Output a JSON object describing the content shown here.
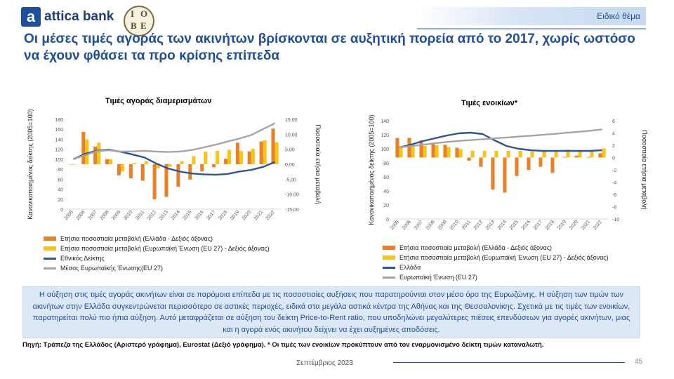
{
  "header": {
    "logo_text": "attica bank",
    "logo_mark": "a",
    "partner_logo_letters": [
      "I",
      "O",
      "B",
      "E"
    ],
    "badge": "Ειδικό θέμα"
  },
  "title": "Οι μέσες τιμές αγοράς των ακινήτων βρίσκονται σε αυξητική πορεία από το 2017, χωρίς ωστόσο να έχουν φθάσει τα προ κρίσης επίπεδα",
  "colors": {
    "orange": "#e8812a",
    "yellow": "#f5c518",
    "blue": "#2f5597",
    "gray": "#a5a5a5",
    "accent": "#1f4e9c"
  },
  "chart_data": [
    {
      "type": "bar",
      "title": "Τιμές αγοράς διαμερισμάτων",
      "ylabel": "Κανονικοποιημένος δείκτης (2005=100)",
      "y2label": "Ποσοστιαία ετήσια μεταβολή",
      "ylim": [
        0,
        180
      ],
      "y2lim": [
        -15,
        15
      ],
      "yticks": [
        "0",
        "20",
        "40",
        "60",
        "80",
        "100",
        "120",
        "140",
        "160",
        "180"
      ],
      "y2ticks": [
        "-15,00",
        "-10,00",
        "-5,00",
        "0,00",
        "5,00",
        "10,00",
        "15,00"
      ],
      "categories": [
        "2005",
        "2006",
        "2007",
        "2008",
        "2009",
        "2010",
        "2011",
        "2012",
        "2013",
        "2014",
        "2015",
        "2016",
        "2017",
        "2018",
        "2019",
        "2020",
        "2021",
        "2022"
      ],
      "series": [
        {
          "name": "Ετήσια ποσοστιαία μεταβολή (Ελλάδα - Δεξιός άξονας)",
          "kind": "bar",
          "axis": "right",
          "values": [
            0,
            10.8,
            5.9,
            1.7,
            -3.7,
            -4.7,
            -5.5,
            -11.7,
            -10.9,
            -7.5,
            -5.1,
            -2.4,
            -1.0,
            1.8,
            7.2,
            4.3,
            7.6,
            11.9
          ]
        },
        {
          "name": "Ετήσια ποσοστιαία μεταβολή (Ευρωπαϊκή Ένωση (EU 27) - Δεξιός άξονας)",
          "kind": "bar",
          "axis": "right",
          "values": [
            0,
            8.3,
            7.2,
            1.7,
            -2.4,
            0.4,
            1.0,
            -1.4,
            -0.8,
            1.0,
            2.7,
            4.2,
            4.5,
            4.8,
            4.4,
            5.1,
            8.0,
            7.3
          ]
        },
        {
          "name": "Εθνικός Δείκτης",
          "kind": "line",
          "axis": "left",
          "values": [
            100,
            110.8,
            117.3,
            119.3,
            114.9,
            109.5,
            103.5,
            91.4,
            81.4,
            75.3,
            71.5,
            69.8,
            69.1,
            70.4,
            75.4,
            78.6,
            84.6,
            94.7
          ]
        },
        {
          "name": "Μέσος Ευρωπαϊκής Ένωσης(EU 27)",
          "kind": "line",
          "axis": "left",
          "values": [
            100,
            108.3,
            116.1,
            118.1,
            115.3,
            115.8,
            116.9,
            115.3,
            114.4,
            115.5,
            118.6,
            123.6,
            129.2,
            135.4,
            141.3,
            148.5,
            160.4,
            172.1
          ]
        }
      ]
    },
    {
      "type": "bar",
      "title": "Τιμές ενοικίων*",
      "ylabel": "Κανονικοποιημένος δείκτης (2005=100)",
      "y2label": "Ποσοστιαία ετήσια μεταβολή",
      "ylim": [
        0,
        140
      ],
      "y2lim": [
        -10,
        6
      ],
      "yticks": [
        "0",
        "20",
        "40",
        "60",
        "80",
        "100",
        "120",
        "140"
      ],
      "y2ticks": [
        "-10",
        "-8",
        "-6",
        "-4",
        "-2",
        "0",
        "2",
        "4",
        "6"
      ],
      "categories": [
        "2005",
        "2006",
        "2007",
        "2008",
        "2009",
        "2010",
        "2011",
        "2012",
        "2013",
        "2014",
        "2015",
        "2016",
        "2017",
        "2018",
        "2019",
        "2020",
        "2021",
        "2022"
      ],
      "series": [
        {
          "name": "Ετήσια ποσοστιαία μεταβολή (Ελλάδα - Δεξιός άξονας)",
          "kind": "bar",
          "axis": "right",
          "values": [
            3.2,
            3.2,
            2.8,
            2.4,
            2.1,
            1.6,
            -0.5,
            -1.5,
            -5.2,
            -5.7,
            -3.0,
            -2.0,
            -1.5,
            -2.5,
            0.1,
            0.3,
            0.1,
            0.7
          ]
        },
        {
          "name": "Ετήσια ποσοστιαία μεταβολή (Ευρωπαϊκή Ένωση (EU 27) - Δεξιός άξονας)",
          "kind": "bar",
          "axis": "right",
          "values": [
            1.8,
            1.9,
            1.9,
            2.0,
            1.7,
            1.4,
            1.1,
            1.1,
            1.1,
            1.1,
            1.1,
            1.0,
            1.1,
            1.1,
            1.3,
            1.1,
            1.2,
            1.5
          ]
        },
        {
          "name": "Ελλάδα",
          "kind": "line",
          "axis": "left",
          "values": [
            102,
            106,
            111,
            115,
            119,
            122,
            123,
            121,
            112,
            104,
            100,
            98,
            97,
            97,
            97,
            97,
            97,
            98
          ]
        },
        {
          "name": "Ευρωπαϊκή Ένωση (EU 27)",
          "kind": "line",
          "axis": "left",
          "values": [
            102,
            103.8,
            105.8,
            107.9,
            109.7,
            111.2,
            112.4,
            113.6,
            114.9,
            116.1,
            117.4,
            118.6,
            119.9,
            121.2,
            122.8,
            124.2,
            125.7,
            127.6
          ]
        }
      ]
    }
  ],
  "summary": "Η αύξηση στις τιμές αγοράς ακινήτων είναι σε παρόμοια επίπεδα με τις ποσοστιαίες αυξήσεις που παρατηρούνται στον μέσο όρο της Ευρωζώνης. Η αύξηση των τιμών των ακινήτων στην Ελλάδα συγκεντρώνεται περισσότερο σε αστικές περιοχές, ειδικά στα μεγάλα αστικά κέντρα της Αθήνας και της Θεσσαλονίκης. Σχετικά με τις τιμές των ενοικίων, παρατηρείται πολύ πιο ήπια αύξηση. Αυτό μεταφράζεται σε αύξηση του δείκτη Price-to-Rent ratio, που υποδηλώνει μεγαλύτερες πιέσεις επενδύσεων για αγορές ακινήτων, μιας και η αγορά ενός ακινήτου δείχνει να έχει αυξημένες αποδόσεις.",
  "source": "Πηγή: Τράπεζα της Ελλάδος (Αριστερό γράφημα), Eurostat (Δεξιό γράφημα). * Οι τιμές των ενοικίων προκύπτουν από τον εναρμονισμένο δείκτη τιμών καταναλωτή.",
  "footer": {
    "date": "Σεπτέμβριος 2023",
    "page": "45"
  }
}
